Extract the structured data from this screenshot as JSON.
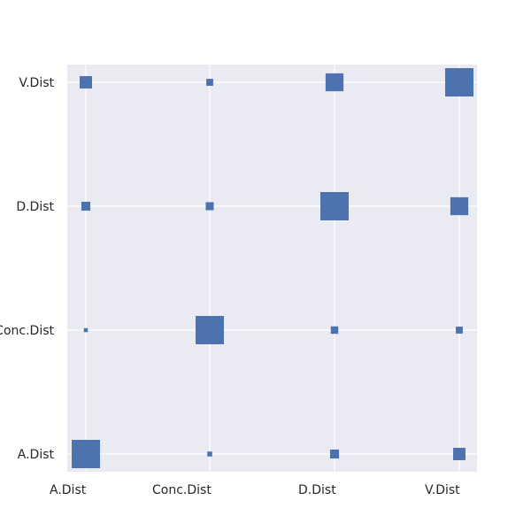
{
  "chart_data": {
    "type": "heatmap",
    "title": "",
    "xlabel": "",
    "ylabel": "",
    "x_categories": [
      "A.Dist",
      "Conc.Dist",
      "D.Dist",
      "V.Dist"
    ],
    "y_categories": [
      "A.Dist",
      "Conc.Dist",
      "D.Dist",
      "V.Dist"
    ],
    "value_encoding": "square marker area (relative magnitude)",
    "cells": [
      {
        "x": "A.Dist",
        "y": "V.Dist",
        "value": 0.19
      },
      {
        "x": "Conc.Dist",
        "y": "V.Dist",
        "value": 0.06
      },
      {
        "x": "D.Dist",
        "y": "V.Dist",
        "value": 0.4
      },
      {
        "x": "V.Dist",
        "y": "V.Dist",
        "value": 1.0
      },
      {
        "x": "A.Dist",
        "y": "D.Dist",
        "value": 0.1
      },
      {
        "x": "Conc.Dist",
        "y": "D.Dist",
        "value": 0.08
      },
      {
        "x": "D.Dist",
        "y": "D.Dist",
        "value": 1.0
      },
      {
        "x": "V.Dist",
        "y": "D.Dist",
        "value": 0.4
      },
      {
        "x": "A.Dist",
        "y": "Conc.Dist",
        "value": 0.02
      },
      {
        "x": "Conc.Dist",
        "y": "Conc.Dist",
        "value": 1.0
      },
      {
        "x": "D.Dist",
        "y": "Conc.Dist",
        "value": 0.07
      },
      {
        "x": "V.Dist",
        "y": "Conc.Dist",
        "value": 0.06
      },
      {
        "x": "A.Dist",
        "y": "A.Dist",
        "value": 1.0
      },
      {
        "x": "Conc.Dist",
        "y": "A.Dist",
        "value": 0.03
      },
      {
        "x": "D.Dist",
        "y": "A.Dist",
        "value": 0.1
      },
      {
        "x": "V.Dist",
        "y": "A.Dist",
        "value": 0.19
      }
    ],
    "grid": true,
    "legend": "none",
    "colors": {
      "marker": "#4c72b0",
      "plot_background": "#eaeaf2",
      "grid": "#ffffff",
      "text": "#262626"
    }
  }
}
